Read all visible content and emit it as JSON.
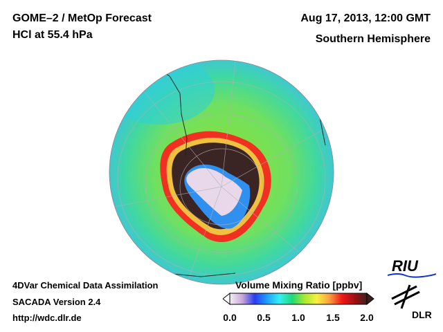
{
  "header": {
    "title_line1": "GOME–2 / MetOp Forecast",
    "title_line2": "HCl at 55.4 hPa",
    "date": "Aug 17, 2013, 12:00 GMT",
    "region": "Southern Hemisphere"
  },
  "footer": {
    "line1": "4DVar Chemical Data Assimilation",
    "line2": "SACADA Version 2.4",
    "url": "http://wdc.dlr.de"
  },
  "colorbar": {
    "title": "Volume Mixing Ratio [ppbv]",
    "ticks": [
      "0.0",
      "0.5",
      "1.0",
      "1.5",
      "2.0"
    ],
    "colors": [
      "#f4eef4",
      "#c9a8d8",
      "#2a3cf0",
      "#1ea0ff",
      "#35f0f0",
      "#20d878",
      "#a8e830",
      "#f8f040",
      "#f8a040",
      "#f01818",
      "#a01010",
      "#3a2020"
    ]
  },
  "logos": {
    "riu": "RIU",
    "dlr": "DLR"
  }
}
